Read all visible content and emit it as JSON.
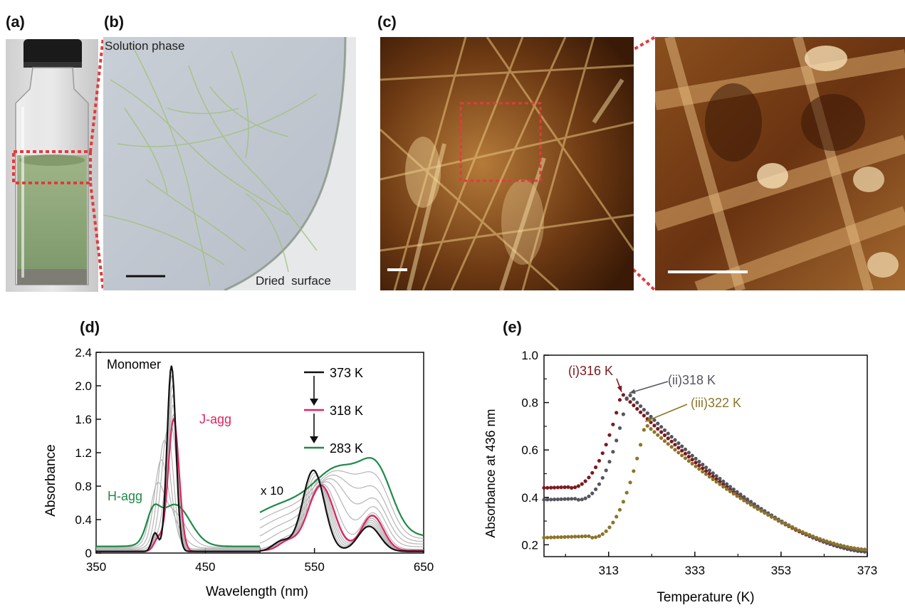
{
  "panels": {
    "a": {
      "label": "(a)"
    },
    "b": {
      "label": "(b)",
      "top_text": "Solution phase",
      "bottom_text": "Dried  surface"
    },
    "c": {
      "label": "(c)"
    },
    "d": {
      "label": "(d)"
    },
    "e": {
      "label": "(e)"
    }
  },
  "colors": {
    "black": "#111111",
    "red": "#e0245e",
    "green": "#1f8a47",
    "gray": "#b5b5b5",
    "e_i": "#7a1a1f",
    "e_ii": "#55555f",
    "e_iii": "#8c7428",
    "dashed": "#e23b3b"
  },
  "chart_data": [
    {
      "id": "d",
      "type": "line",
      "xlabel": "Wavelength (nm)",
      "ylabel": "Absorbance",
      "xlim": [
        350,
        650
      ],
      "ylim": [
        0,
        2.4
      ],
      "x_ticks": [
        "350",
        "450",
        "550",
        "650"
      ],
      "y_ticks": [
        "0",
        "0.4",
        "0.8",
        "1.2",
        "1.6",
        "2.0",
        "2.4"
      ],
      "annotations": {
        "monomer": "Monomer",
        "jagg": "J-agg",
        "hagg": "H-agg",
        "x10": "x 10"
      },
      "legend": [
        "373 K",
        "318 K",
        "283 K"
      ],
      "series": [
        {
          "name": "373 K",
          "color": "black",
          "soret": {
            "peaks": [
              [
                419,
                2.22,
                4
              ],
              [
                404,
                0.22,
                3
              ]
            ],
            "base": 0.02
          },
          "q": {
            "peaks": [
              [
                549,
                0.97,
                10
              ],
              [
                600,
                0.3,
                10
              ],
              [
                520,
                0.12,
                8
              ]
            ],
            "base": 0.02
          }
        },
        {
          "name": "318 K",
          "color": "red",
          "soret": {
            "peaks": [
              [
                421,
                1.58,
                5
              ],
              [
                407,
                0.15,
                4
              ]
            ],
            "base": 0.02
          },
          "q": {
            "peaks": [
              [
                556,
                0.78,
                12
              ],
              [
                603,
                0.42,
                10
              ],
              [
                525,
                0.1,
                8
              ]
            ],
            "base": 0.03
          }
        },
        {
          "name": "283 K",
          "color": "green",
          "soret": {
            "peaks": [
              [
                402,
                0.3,
                6
              ],
              [
                422,
                0.5,
                14
              ]
            ],
            "base": 0.08
          },
          "q": {
            "peaks": [
              [
                575,
                0.75,
                24
              ],
              [
                608,
                0.58,
                14
              ],
              [
                520,
                0.35,
                30
              ]
            ],
            "base": 0.2
          }
        }
      ],
      "gray_count": 10
    },
    {
      "id": "e",
      "type": "scatter",
      "xlabel": "Temperature (K)",
      "ylabel": "Absorbance at 436 nm",
      "xlim": [
        298,
        373
      ],
      "ylim": [
        0.15,
        1.0
      ],
      "x_ticks": [
        "313",
        "333",
        "353",
        "373"
      ],
      "y_ticks": [
        "0.2",
        "0.4",
        "0.6",
        "0.8",
        "1.0"
      ],
      "series": [
        {
          "name": "(i)316 K",
          "color": "e_i",
          "base": 0.44,
          "onset": 304,
          "peak_x": 316,
          "peak_y": 0.84,
          "end_y": 0.17
        },
        {
          "name": "(ii)318 K",
          "color": "e_ii",
          "base": 0.39,
          "onset": 306,
          "peak_x": 317.5,
          "peak_y": 0.84,
          "end_y": 0.17
        },
        {
          "name": "(iii)322 K",
          "color": "e_iii",
          "base": 0.23,
          "onset": 309,
          "peak_x": 321.5,
          "peak_y": 0.71,
          "end_y": 0.18
        }
      ]
    }
  ]
}
